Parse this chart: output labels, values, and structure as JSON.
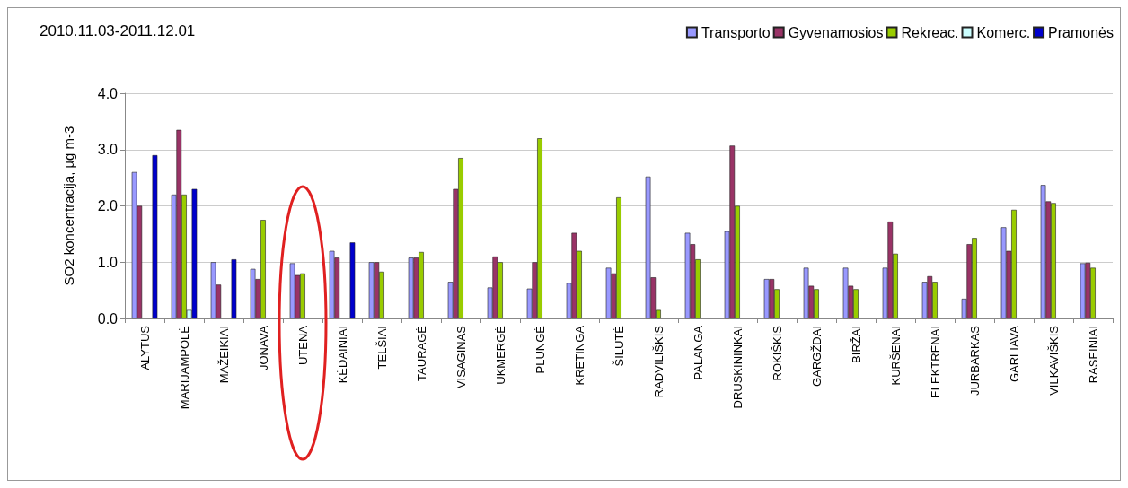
{
  "chart_data": {
    "type": "bar",
    "title": "2010.11.03-2011.12.01",
    "ylabel": "SO2 koncentracija, µg m-3",
    "categories": [
      "ALYTUS",
      "MARIJAMPOLĖ",
      "MAŽEIKIAI",
      "JONAVA",
      "UTENA",
      "KĖDAINIAI",
      "TELŠIAI",
      "TAURAGĖ",
      "VISAGINAS",
      "UKMERGĖ",
      "PLUNGĖ",
      "KRETINGA",
      "ŠILUTĖ",
      "RADVILIŠKIS",
      "PALANGA",
      "DRUSKININKAI",
      "ROKIŠKIS",
      "GARGŽDAI",
      "BIRŽAI",
      "KURŠENAI",
      "ELEKTRĖNAI",
      "JURBARKAS",
      "GARLIAVA",
      "VILKAVIŠKIS",
      "RASEINIAI"
    ],
    "series": [
      {
        "name": "Transporto",
        "color": "#9999ff",
        "values": [
          2.6,
          2.2,
          1.0,
          0.88,
          0.98,
          1.2,
          1.0,
          1.08,
          0.65,
          0.55,
          0.53,
          0.63,
          0.9,
          2.52,
          1.52,
          1.55,
          0.7,
          0.9,
          0.9,
          0.9,
          0.65,
          0.35,
          1.62,
          2.37,
          0.98
        ]
      },
      {
        "name": "Gyvenamosios",
        "color": "#993366",
        "values": [
          2.0,
          3.35,
          0.6,
          0.7,
          0.77,
          1.08,
          1.0,
          1.08,
          2.3,
          1.1,
          1.0,
          1.52,
          0.8,
          0.73,
          1.32,
          3.07,
          0.7,
          0.58,
          0.58,
          1.72,
          0.75,
          1.32,
          1.2,
          2.08,
          0.99
        ]
      },
      {
        "name": "Rekreac.",
        "color": "#99cc00",
        "values": [
          null,
          2.2,
          null,
          1.75,
          0.8,
          null,
          0.83,
          1.18,
          2.85,
          1.0,
          3.2,
          1.2,
          2.15,
          0.15,
          1.05,
          2.0,
          0.52,
          0.52,
          0.52,
          1.15,
          0.65,
          1.43,
          1.93,
          2.05,
          0.9
        ]
      },
      {
        "name": "Komerc.",
        "color": "#ccffff",
        "values": [
          null,
          0.15,
          null,
          null,
          null,
          null,
          null,
          null,
          null,
          null,
          null,
          null,
          null,
          null,
          null,
          null,
          null,
          null,
          null,
          null,
          null,
          null,
          null,
          null,
          null
        ]
      },
      {
        "name": "Pramonės",
        "color": "#0000cc",
        "values": [
          2.9,
          2.3,
          1.05,
          null,
          null,
          1.35,
          null,
          null,
          null,
          null,
          null,
          null,
          null,
          null,
          null,
          null,
          null,
          null,
          null,
          null,
          null,
          null,
          null,
          null,
          null
        ]
      }
    ],
    "ylim": [
      0,
      4
    ],
    "yticks": [
      {
        "value": 0,
        "label": "0.0"
      },
      {
        "value": 1,
        "label": "1.0"
      },
      {
        "value": 2,
        "label": "2.0"
      },
      {
        "value": 3,
        "label": "3.0"
      },
      {
        "value": 4,
        "label": "4.0"
      }
    ],
    "grid": "y",
    "legend": "top right"
  }
}
